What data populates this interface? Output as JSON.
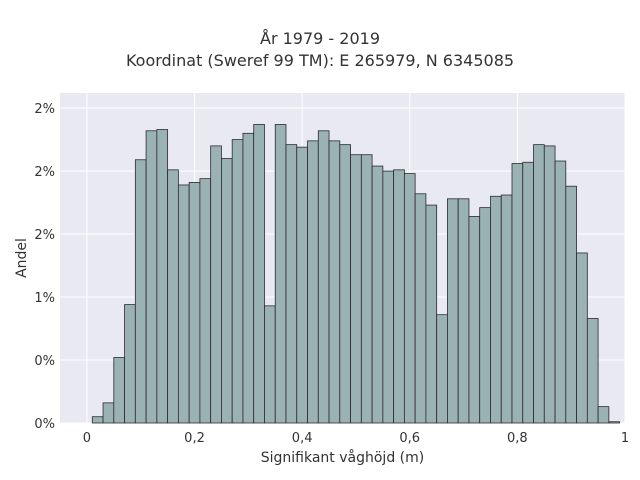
{
  "chart_data": {
    "type": "bar",
    "title": "År 1979 - 2019",
    "subtitle": "Koordinat (Sweref 99 TM): E 265979, N 6345085",
    "xlabel": "Signifikant våghöjd (m)",
    "ylabel": "Andel",
    "xlim": [
      -0.05,
      1.0
    ],
    "ylim": [
      0,
      0.0262
    ],
    "x_ticks": [
      0,
      0.2,
      0.4,
      0.6,
      0.8,
      1.0
    ],
    "x_tick_labels": [
      "0",
      "0,2",
      "0,4",
      "0,6",
      "0,8",
      "1"
    ],
    "y_ticks": [
      0,
      0.005,
      0.01,
      0.015,
      0.02,
      0.025
    ],
    "y_tick_labels": [
      "0%",
      "0%",
      "1%",
      "2%",
      "2%",
      "2%"
    ],
    "grid": true,
    "bin_width": 0.02,
    "bins_start": [
      0.01,
      0.03,
      0.05,
      0.07,
      0.09,
      0.11,
      0.13,
      0.15,
      0.17,
      0.19,
      0.21,
      0.23,
      0.25,
      0.27,
      0.29,
      0.31,
      0.33,
      0.35,
      0.37,
      0.39,
      0.41,
      0.43,
      0.45,
      0.47,
      0.49,
      0.51,
      0.53,
      0.55,
      0.57,
      0.59,
      0.61,
      0.63,
      0.65,
      0.67,
      0.69,
      0.71,
      0.73,
      0.75,
      0.77,
      0.79,
      0.81,
      0.83,
      0.85,
      0.87,
      0.89,
      0.91,
      0.93,
      0.95,
      0.97
    ],
    "values": [
      0.0005,
      0.0016,
      0.0052,
      0.0094,
      0.0209,
      0.0232,
      0.0233,
      0.0201,
      0.0189,
      0.0191,
      0.0194,
      0.022,
      0.021,
      0.0225,
      0.023,
      0.0237,
      0.0093,
      0.0237,
      0.0221,
      0.0219,
      0.0224,
      0.0232,
      0.0224,
      0.0221,
      0.0213,
      0.0213,
      0.0204,
      0.02,
      0.0201,
      0.0198,
      0.0182,
      0.0173,
      0.0086,
      0.0178,
      0.0178,
      0.0164,
      0.0171,
      0.018,
      0.0181,
      0.0206,
      0.0207,
      0.0221,
      0.022,
      0.0208,
      0.0188,
      0.0135,
      0.0083,
      0.0013,
      0.0001
    ],
    "bar_color": "#9ab2b2",
    "bar_edge_color": "#2b2b2b",
    "plot_background": "#e9e9f2",
    "grid_color": "#ffffff"
  }
}
